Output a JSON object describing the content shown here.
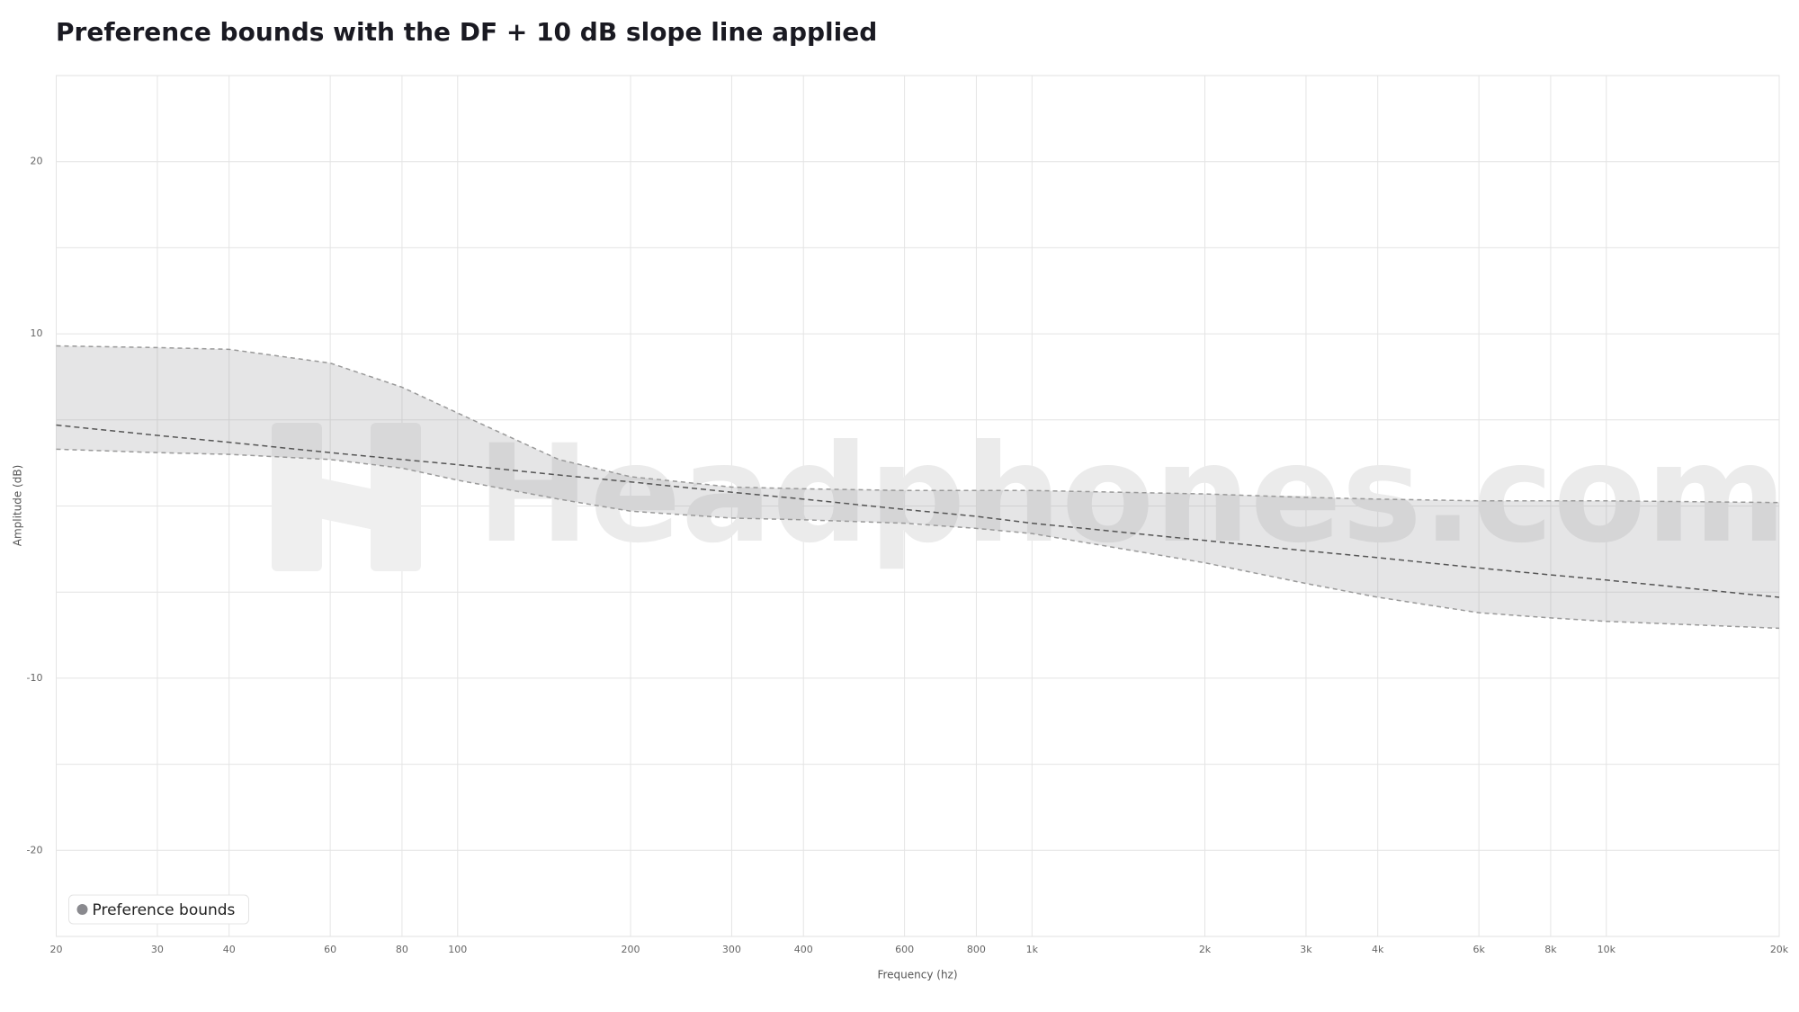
{
  "chart_data": {
    "type": "band_line",
    "title": "Preference bounds with the DF + 10 dB slope line applied",
    "xlabel": "Frequency (hz)",
    "ylabel": "Amplitude (dB)",
    "watermark": "Headphones.com",
    "x_scale": "log",
    "grid": true,
    "legend": "bottom-left",
    "x": [
      20,
      30,
      40,
      60,
      80,
      100,
      150,
      200,
      300,
      400,
      600,
      800,
      1000,
      2000,
      3000,
      4000,
      6000,
      8000,
      10000,
      20000
    ],
    "bands": [
      {
        "name": "Preference bounds",
        "color": "#8a8a8f",
        "upper": [
          9.3,
          9.2,
          9.1,
          8.3,
          6.9,
          5.4,
          2.7,
          1.7,
          1.1,
          1.0,
          0.9,
          0.9,
          0.9,
          0.7,
          0.5,
          0.4,
          0.3,
          0.3,
          0.3,
          0.2
        ],
        "lower": [
          3.3,
          3.1,
          3.0,
          2.7,
          2.2,
          1.5,
          0.4,
          -0.3,
          -0.7,
          -0.8,
          -1.0,
          -1.3,
          -1.6,
          -3.3,
          -4.5,
          -5.3,
          -6.2,
          -6.5,
          -6.7,
          -7.1
        ]
      }
    ],
    "series": [
      {
        "color": "#555555",
        "values": [
          4.7,
          4.1,
          3.7,
          3.1,
          2.7,
          2.4,
          1.8,
          1.4,
          0.8,
          0.4,
          -0.2,
          -0.6,
          -1.0,
          -2.0,
          -2.6,
          -3.0,
          -3.6,
          -4.0,
          -4.3,
          -5.3
        ]
      }
    ],
    "xlim": [
      20,
      20000
    ],
    "ylim": [
      -25,
      25
    ],
    "xticks": [
      20,
      30,
      40,
      60,
      80,
      100,
      200,
      300,
      400,
      600,
      800,
      {
        "value": 1000,
        "label": "1k"
      },
      {
        "value": 2000,
        "label": "2k"
      },
      {
        "value": 3000,
        "label": "3k"
      },
      {
        "value": 4000,
        "label": "4k"
      },
      {
        "value": 6000,
        "label": "6k"
      },
      {
        "value": 8000,
        "label": "8k"
      },
      {
        "value": 10000,
        "label": "10k"
      },
      {
        "value": 20000,
        "label": "20k"
      }
    ],
    "yticks": [
      -20,
      -10,
      10,
      20
    ],
    "yminor": [
      -15,
      -5,
      0,
      5,
      15
    ]
  }
}
